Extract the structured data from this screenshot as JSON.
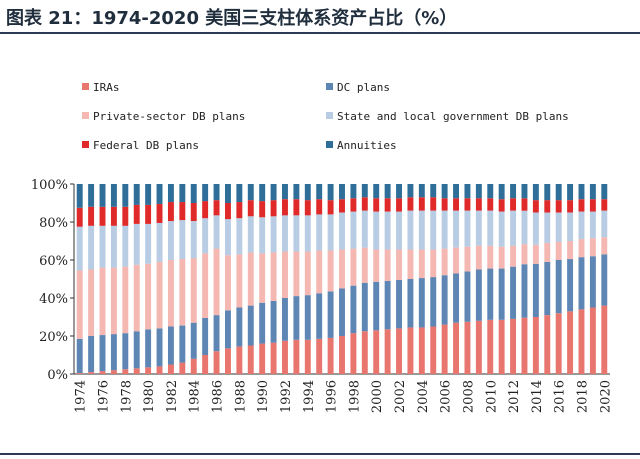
{
  "header": {
    "title": "图表 21：1974-2020 美国三支柱体系资产占比（%）"
  },
  "colors": {
    "IRAs": "#e8766f",
    "DC plans": "#5e86b5",
    "Private-sector DB plans": "#f4b7b1",
    "State and local government DB plans": "#b8cde3",
    "Federal DB plans": "#e02a2a",
    "Annuities": "#2e6e99"
  },
  "chart_data": {
    "type": "bar",
    "stacked": true,
    "title": "",
    "xlabel": "",
    "ylabel": "",
    "ylim": [
      0,
      100
    ],
    "y_ticks": [
      "0%",
      "20%",
      "40%",
      "60%",
      "80%",
      "100%"
    ],
    "categories": [
      "1974",
      "1975",
      "1976",
      "1977",
      "1978",
      "1979",
      "1980",
      "1981",
      "1982",
      "1983",
      "1984",
      "1985",
      "1986",
      "1987",
      "1988",
      "1989",
      "1990",
      "1991",
      "1992",
      "1993",
      "1994",
      "1995",
      "1996",
      "1997",
      "1998",
      "1999",
      "2000",
      "2001",
      "2002",
      "2003",
      "2004",
      "2005",
      "2006",
      "2007",
      "2008",
      "2009",
      "2010",
      "2011",
      "2012",
      "2013",
      "2014",
      "2015",
      "2016",
      "2017",
      "2018",
      "2019",
      "2020"
    ],
    "x_tick_labels": [
      "1974",
      "1976",
      "1978",
      "1980",
      "1982",
      "1984",
      "1986",
      "1988",
      "1990",
      "1992",
      "1994",
      "1996",
      "1998",
      "2000",
      "2002",
      "2004",
      "2006",
      "2008",
      "2010",
      "2012",
      "2014",
      "2016",
      "2018",
      "2020"
    ],
    "legend": {
      "placement": "top",
      "columns": 2
    },
    "series": [
      {
        "name": "IRAs",
        "values": [
          0.5,
          1,
          1.5,
          2,
          2.5,
          3,
          3.5,
          4,
          5,
          6,
          8,
          10,
          12,
          13.5,
          14.5,
          15,
          16,
          16.5,
          17.5,
          18,
          18,
          18.5,
          19,
          20,
          21.5,
          22.5,
          23,
          23.5,
          24,
          24.5,
          24.5,
          25,
          26,
          27,
          27.5,
          28,
          28.5,
          28.5,
          29,
          29.5,
          30,
          31,
          32,
          33,
          34,
          35,
          36
        ]
      },
      {
        "name": "DC plans",
        "values": [
          18,
          19,
          19,
          19,
          19,
          19.5,
          20,
          20,
          20,
          19.5,
          19,
          19.5,
          19,
          20,
          20.5,
          21,
          21.5,
          22,
          22.5,
          23,
          23.5,
          24,
          24.5,
          25,
          25,
          25.5,
          25.5,
          25.5,
          25.5,
          25.5,
          26,
          26,
          26,
          26,
          26.5,
          27,
          27,
          27,
          27.5,
          28,
          28,
          28,
          28,
          27.5,
          27.5,
          27,
          27
        ]
      },
      {
        "name": "Private-sector DB plans",
        "values": [
          36,
          35,
          35.5,
          35,
          35,
          35,
          34.5,
          35,
          35,
          35,
          34,
          34,
          35,
          29,
          28,
          28,
          26,
          25.5,
          24.5,
          23.5,
          23,
          22.5,
          21.5,
          20.5,
          19.5,
          18.5,
          17,
          16.5,
          16,
          15.5,
          15,
          14.5,
          14,
          13.5,
          13,
          12.5,
          12,
          11.5,
          11,
          10.5,
          10,
          10,
          9.5,
          9.5,
          9.5,
          9.5,
          9
        ]
      },
      {
        "name": "State and local government DB plans",
        "values": [
          23,
          23,
          22,
          22,
          21.5,
          21.5,
          21,
          20.5,
          20.5,
          20.5,
          19.5,
          18.5,
          17.5,
          19,
          19,
          19,
          19,
          19,
          19,
          19,
          19,
          19,
          19,
          19.5,
          19.5,
          19.5,
          20,
          20,
          20,
          20.5,
          20.5,
          20.5,
          20,
          19.5,
          19,
          18.5,
          18.5,
          18.5,
          18.5,
          17.5,
          17,
          16,
          15.5,
          15,
          14.5,
          14,
          14
        ]
      },
      {
        "name": "Federal DB plans",
        "values": [
          10,
          10,
          10,
          10,
          10,
          10,
          10,
          10,
          10,
          9.5,
          9.5,
          9,
          8,
          8.5,
          8.5,
          8.5,
          8.5,
          8.5,
          8.5,
          8.5,
          8,
          8,
          7.5,
          7,
          7,
          7,
          7,
          7,
          7,
          7,
          7,
          7,
          6.5,
          6.5,
          6.5,
          6.5,
          6.5,
          6.5,
          6.5,
          6.5,
          6.5,
          6.5,
          6.5,
          6.5,
          6.5,
          6.5,
          6
        ]
      },
      {
        "name": "Annuities",
        "values": [
          12.5,
          12,
          12,
          12,
          12,
          11,
          11,
          10.5,
          9.5,
          9.5,
          10,
          9,
          8.5,
          10,
          9.5,
          8.5,
          9,
          8.5,
          8,
          8,
          8.5,
          8,
          8.5,
          8,
          7.5,
          7,
          7.5,
          7.5,
          7.5,
          7,
          7,
          7,
          7.5,
          7.5,
          7.5,
          7.5,
          7.5,
          8,
          7.5,
          7.5,
          8.5,
          8.5,
          8.5,
          8.5,
          8,
          8,
          8
        ]
      }
    ]
  }
}
